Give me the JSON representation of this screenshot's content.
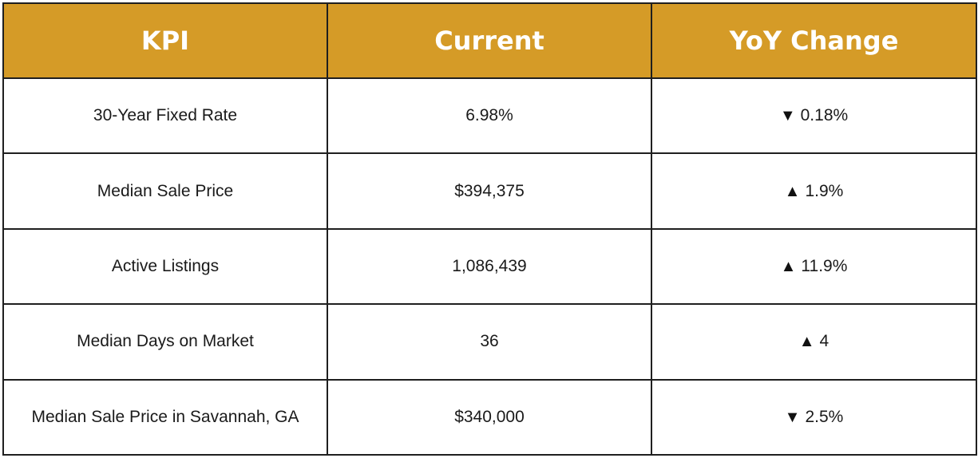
{
  "table": {
    "headers": [
      "KPI",
      "Current",
      "YoY Change"
    ],
    "rows": [
      {
        "kpi": "30-Year Fixed Rate",
        "current": "6.98%",
        "direction": "down",
        "arrow": "▼",
        "change": "0.18%"
      },
      {
        "kpi": "Median Sale Price",
        "current": "$394,375",
        "direction": "up",
        "arrow": "▲",
        "change": "1.9%"
      },
      {
        "kpi": "Active Listings",
        "current": "1,086,439",
        "direction": "up",
        "arrow": "▲",
        "change": "11.9%"
      },
      {
        "kpi": "Median Days on Market",
        "current": "36",
        "direction": "up",
        "arrow": "▲",
        "change": "4"
      },
      {
        "kpi": "Median Sale Price in Savannah, GA",
        "current": "$340,000",
        "direction": "down",
        "arrow": "▼",
        "change": "2.5%"
      }
    ]
  },
  "colors": {
    "header_bg": "#d59b27",
    "header_text": "#ffffff",
    "border": "#1f1f1f"
  }
}
